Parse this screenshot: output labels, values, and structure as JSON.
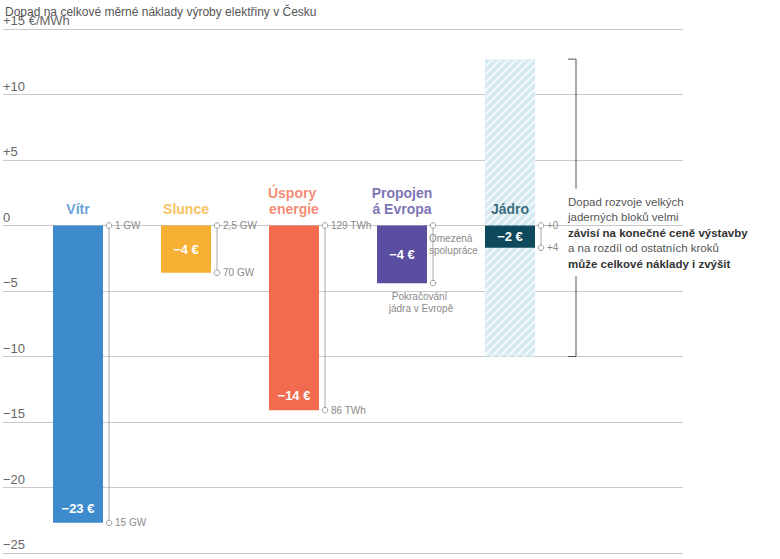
{
  "chart_data": {
    "type": "bar",
    "title": "Dopad na celkové měrné náklady výroby elektřiny v Česku",
    "categories": [
      "Vítr",
      "Slunce",
      "Úspory energie",
      "Propojená Evropa",
      "Jádro"
    ],
    "values": [
      -22.7,
      -3.6,
      -14.1,
      -4.4,
      -1.7
    ],
    "value_labels": [
      "−23 €",
      "−4 €",
      "−14 €",
      "−4 €",
      "−2 €"
    ],
    "colors": [
      "#3d8bcd",
      "#f6b134",
      "#f26b4e",
      "#5a4ea1",
      "#0e4a5b"
    ],
    "data_labels": true,
    "range_labels": [
      [
        "1 GW",
        "15 GW"
      ],
      [
        "2,5 GW",
        "70 GW"
      ],
      [
        "129 TWh",
        "86 TWh"
      ],
      [
        "Omezená spolupráce",
        "Pokračování jádra v Evropě"
      ],
      [
        "+0",
        "+4"
      ]
    ],
    "range": {
      "category": "Jádro",
      "low": -10,
      "high": 12.7,
      "color": "#d5e9f0"
    },
    "annotation": {
      "lines": [
        "Dopad rozvoje velkých",
        "jaderných bloků velmi",
        "závisí na konečné ceně výstavby",
        "a na rozdíl od ostatních kroků",
        "může celkové náklady i zvýšit"
      ],
      "emphasis": [
        "závisí na konečné ceně výstavby",
        "může celkové náklady i zvýšit"
      ]
    },
    "ylim": [
      -25,
      15
    ],
    "yticks": [
      {
        "value": -25,
        "label": "−25"
      },
      {
        "value": -20,
        "label": "−20"
      },
      {
        "value": -15,
        "label": "−15"
      },
      {
        "value": -10,
        "label": "−10"
      },
      {
        "value": -5,
        "label": "−5"
      },
      0,
      {
        "value": 5,
        "label": "+5"
      },
      {
        "value": 10,
        "label": "+10"
      },
      {
        "value": 15,
        "label": "+15 €/MWh"
      }
    ],
    "grid": true,
    "tick_labels": "y"
  }
}
